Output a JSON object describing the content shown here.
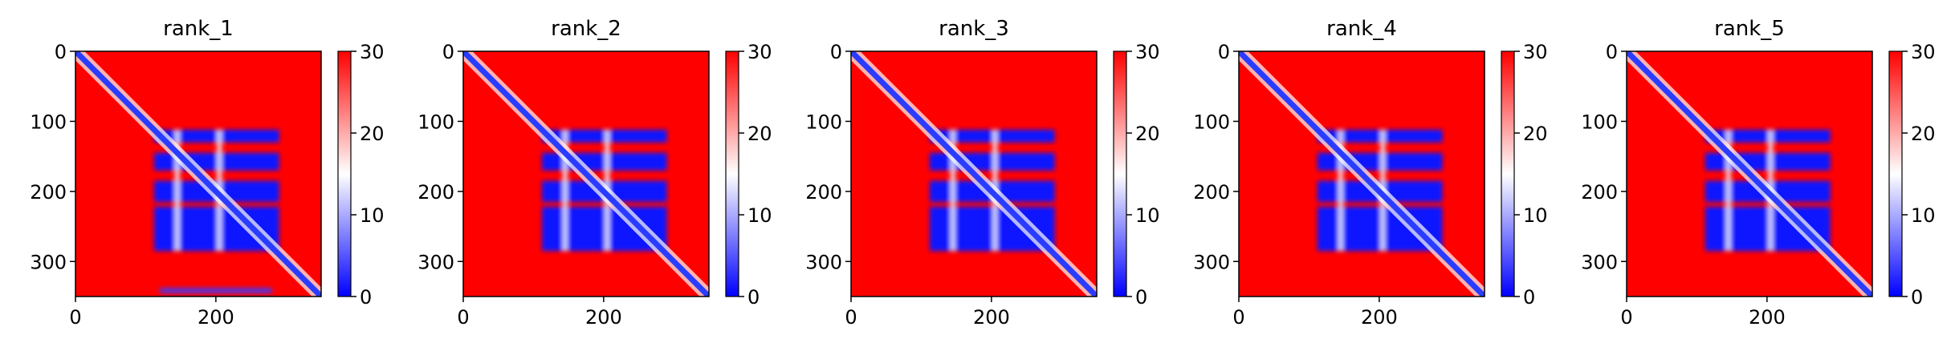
{
  "chart_data": {
    "type": "heatmap",
    "layout": "1x5 small multiples",
    "common": {
      "extent": [
        0,
        350
      ],
      "x_ticks": [
        0,
        200
      ],
      "y_ticks": [
        0,
        100,
        200,
        300
      ],
      "y_inverted": true,
      "colormap": "bwr",
      "colormap_colors": [
        "#0000ff",
        "#ffffff",
        "#ff0000"
      ],
      "vmin": 0,
      "vmax": 30,
      "colorbar_ticks": [
        0,
        10,
        20,
        30
      ],
      "block_structure": {
        "diagonal_band": "low",
        "low_blocks_x": [
          [
            112,
            176
          ],
          [
            170,
            290
          ]
        ],
        "low_blocks_y": [
          [
            112,
            130
          ],
          [
            145,
            170
          ],
          [
            185,
            215
          ],
          [
            222,
            285
          ]
        ]
      }
    },
    "panels": [
      {
        "title": "rank_1",
        "xlim": [
          0,
          350
        ],
        "ylim": [
          350,
          0
        ],
        "extra_low_bottom_strip": true
      },
      {
        "title": "rank_2",
        "xlim": [
          0,
          350
        ],
        "ylim": [
          350,
          0
        ],
        "extra_low_bottom_strip": false
      },
      {
        "title": "rank_3",
        "xlim": [
          0,
          350
        ],
        "ylim": [
          350,
          0
        ],
        "extra_low_bottom_strip": false
      },
      {
        "title": "rank_4",
        "xlim": [
          0,
          350
        ],
        "ylim": [
          350,
          0
        ],
        "extra_low_bottom_strip": false
      },
      {
        "title": "rank_5",
        "xlim": [
          0,
          350
        ],
        "ylim": [
          350,
          0
        ],
        "extra_low_bottom_strip": false
      }
    ]
  }
}
